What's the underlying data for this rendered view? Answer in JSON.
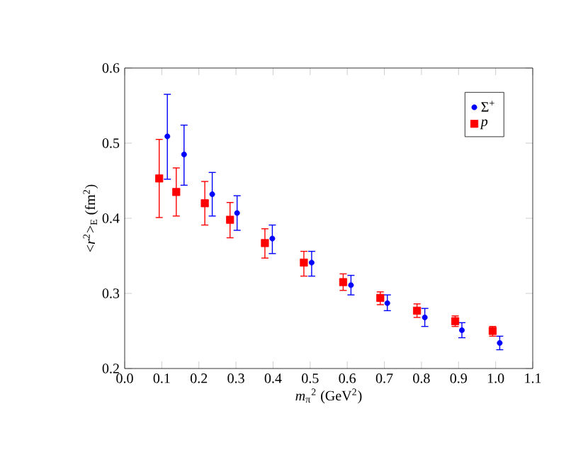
{
  "chart_data": {
    "type": "scatter",
    "xlabel": "*m*$_{π}$$^{2}$ (GeV$^{2}$)",
    "ylabel": "<*r*$^{2}$>$_{E}$ (fm$^{2}$)",
    "xlim": [
      0,
      1.1
    ],
    "ylim": [
      0.2,
      0.6
    ],
    "xticks": [
      {
        "value": 0,
        "label": "0.0"
      },
      0.1,
      0.2,
      0.3,
      0.4,
      0.5,
      0.6,
      0.7,
      0.8,
      0.9,
      {
        "value": 1,
        "label": "1.0"
      },
      1.1
    ],
    "yticks": [
      0.2,
      0.3,
      0.4,
      0.5,
      0.6
    ],
    "legend": "top right",
    "series": [
      {
        "name": "Σ$^{+}$",
        "color": "#0000ff",
        "marker": "circle",
        "x": [
          0.115,
          0.16,
          0.236,
          0.303,
          0.398,
          0.504,
          0.61,
          0.708,
          0.809,
          0.909,
          1.011
        ],
        "values": [
          0.509,
          0.485,
          0.432,
          0.407,
          0.373,
          0.341,
          0.311,
          0.287,
          0.268,
          0.251,
          0.234
        ],
        "errors": [
          [
            0.452,
            0.565
          ],
          [
            0.444,
            0.524
          ],
          [
            0.403,
            0.461
          ],
          [
            0.384,
            0.43
          ],
          [
            0.353,
            0.391
          ],
          [
            0.323,
            0.356
          ],
          [
            0.298,
            0.324
          ],
          [
            0.277,
            0.298
          ],
          [
            0.256,
            0.28
          ],
          [
            0.241,
            0.261
          ],
          [
            0.225,
            0.243
          ]
        ]
      },
      {
        "name": "*p*",
        "color": "#ff0000",
        "marker": "square",
        "x": [
          0.093,
          0.139,
          0.216,
          0.284,
          0.378,
          0.483,
          0.589,
          0.689,
          0.788,
          0.891,
          0.992
        ],
        "values": [
          0.453,
          0.435,
          0.42,
          0.398,
          0.367,
          0.341,
          0.315,
          0.294,
          0.277,
          0.263,
          0.25
        ],
        "errors": [
          [
            0.401,
            0.505
          ],
          [
            0.403,
            0.467
          ],
          [
            0.391,
            0.449
          ],
          [
            0.374,
            0.421
          ],
          [
            0.347,
            0.386
          ],
          [
            0.323,
            0.356
          ],
          [
            0.304,
            0.326
          ],
          [
            0.285,
            0.302
          ],
          [
            0.268,
            0.286
          ],
          [
            0.256,
            0.27
          ],
          [
            0.243,
            0.256
          ]
        ]
      }
    ]
  }
}
